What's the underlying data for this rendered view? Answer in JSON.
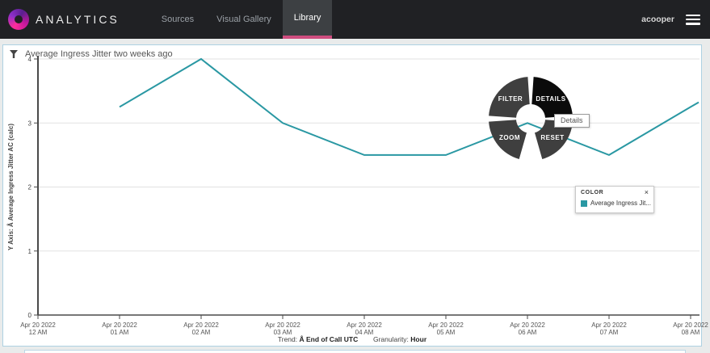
{
  "nav": {
    "brand": "ANALYTICS",
    "items": [
      {
        "label": "Sources"
      },
      {
        "label": "Visual Gallery"
      },
      {
        "label": "Library"
      }
    ],
    "user": "acooper"
  },
  "panel": {
    "title": "Average Ingress Jitter two weeks ago",
    "footer": {
      "trend_label": "Trend:",
      "trend_value": "Â End of Call UTC",
      "granularity_label": "Granularity:",
      "granularity_value": "Hour"
    }
  },
  "radial_menu": {
    "items": [
      {
        "label": "FILTER",
        "color": "#3f3f3f"
      },
      {
        "label": "DETAILS",
        "color": "#0b0b0b"
      },
      {
        "label": "ZOOM",
        "color": "#3f3f3f"
      },
      {
        "label": "RESET",
        "color": "#3f3f3f"
      }
    ],
    "tooltip": "Details"
  },
  "legend": {
    "header": "COLOR",
    "close": "×",
    "items": [
      {
        "label": "Average Ingress Jit...",
        "color": "#2a98a3"
      }
    ]
  },
  "colors": {
    "accent_line": "#2a98a3",
    "nav_active_underline": "#cf4d7f",
    "panel_border": "#aed1e2"
  },
  "chart_data": {
    "type": "line",
    "title": "Average Ingress Jitter two weeks ago",
    "x_axis": {
      "tick_dates": [
        "Apr 20 2022",
        "Apr 20 2022",
        "Apr 20 2022",
        "Apr 20 2022",
        "Apr 20 2022",
        "Apr 20 2022",
        "Apr 20 2022",
        "Apr 20 2022",
        "Apr 20 2022"
      ],
      "tick_times": [
        "12 AM",
        "01 AM",
        "02 AM",
        "03 AM",
        "04 AM",
        "05 AM",
        "06 AM",
        "07 AM",
        "08 AM"
      ]
    },
    "y_axis": {
      "label": "Y Axis: Â Average Ingress Jitter AC (calc)",
      "ticks": [
        0,
        1,
        2,
        3,
        4
      ],
      "range": [
        0,
        4
      ]
    },
    "series": [
      {
        "name": "Average Ingress Jitter AC (calc)",
        "color": "#2a98a3",
        "x_times": [
          "01 AM",
          "02 AM",
          "03 AM",
          "04 AM",
          "05 AM",
          "06 AM",
          "07 AM",
          "08 AM"
        ],
        "values": [
          3.25,
          4,
          3,
          2.5,
          2.5,
          3,
          2.5,
          3.25
        ]
      }
    ],
    "grid": true,
    "legend_position": "overlay-right"
  }
}
